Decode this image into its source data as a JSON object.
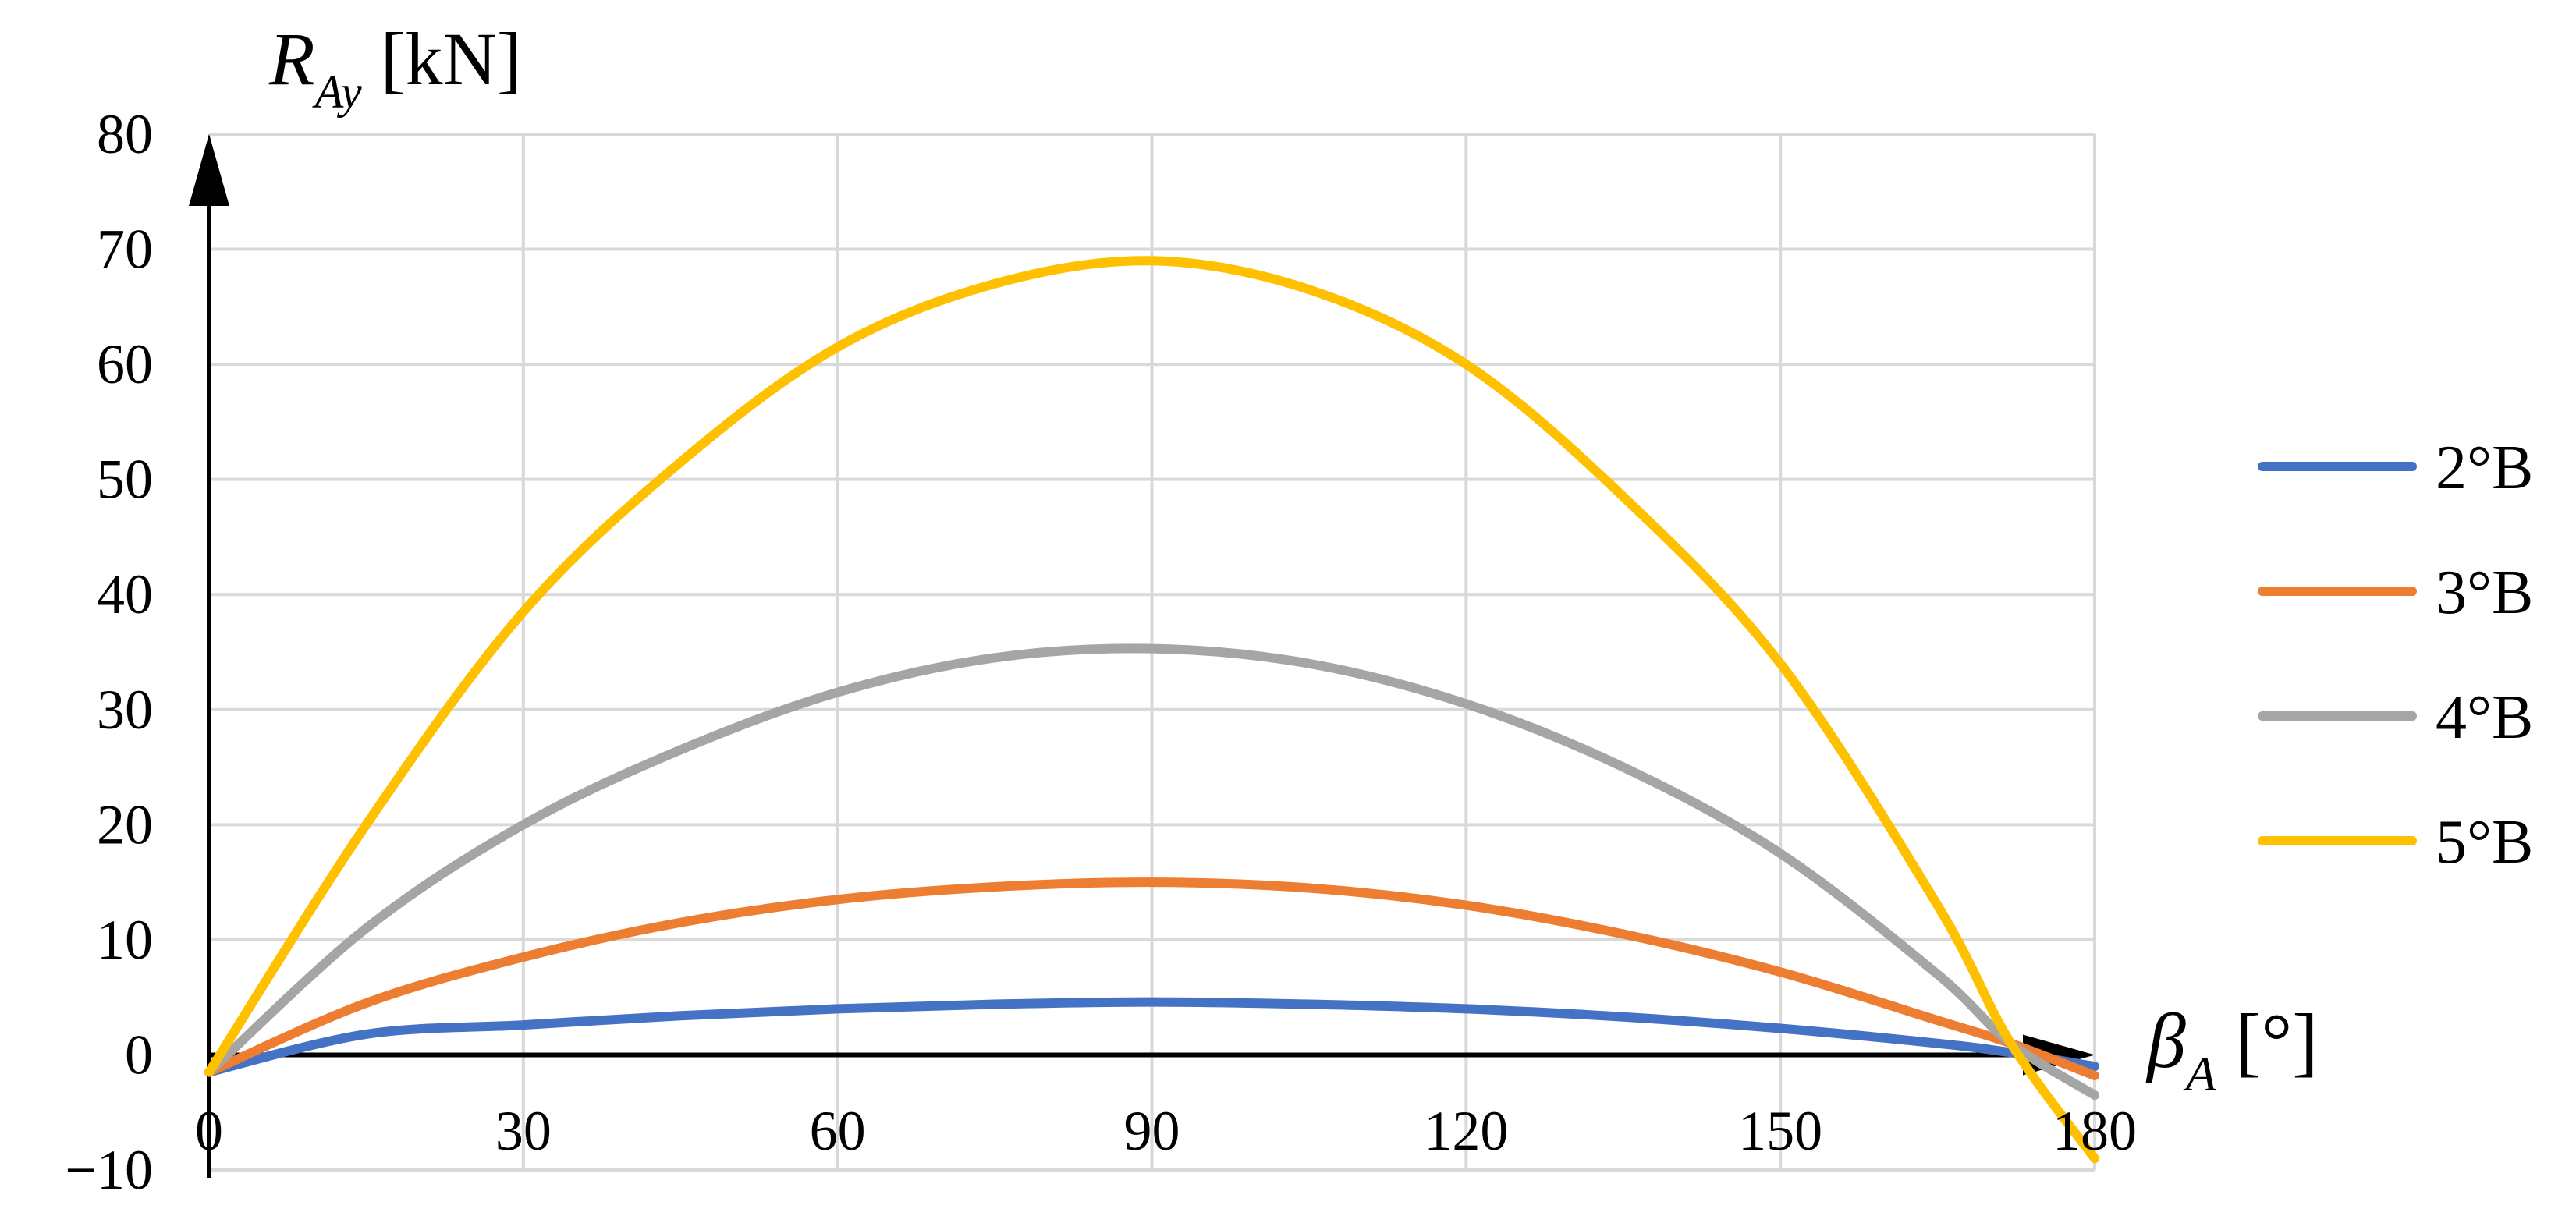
{
  "chart_data": {
    "type": "line",
    "title": "",
    "ylabel": {
      "symbol": "R",
      "subscript": "Ay",
      "unit": "[kN]"
    },
    "xlabel": {
      "symbol": "β",
      "subscript": "A",
      "unit": "[°]"
    },
    "xlim": [
      0,
      180
    ],
    "ylim": [
      -10,
      80
    ],
    "x_ticks": [
      "0",
      "30",
      "60",
      "90",
      "120",
      "150",
      "180"
    ],
    "y_ticks": [
      "−10",
      "0",
      "10",
      "20",
      "30",
      "40",
      "50",
      "60",
      "70",
      "80"
    ],
    "grid": true,
    "legend_position": "right",
    "x": [
      0,
      15,
      30,
      45,
      60,
      75,
      90,
      105,
      120,
      135,
      150,
      165,
      172,
      180
    ],
    "series": [
      {
        "name": "2°B",
        "color": "#4472C4",
        "values": [
          -1.5,
          1.8,
          2.6,
          3.4,
          4.0,
          4.4,
          4.6,
          4.4,
          4.0,
          3.3,
          2.3,
          1.0,
          0.2,
          -1.0
        ]
      },
      {
        "name": "3°B",
        "color": "#ED7D31",
        "values": [
          -1.5,
          4.5,
          8.5,
          11.5,
          13.5,
          14.6,
          15.0,
          14.5,
          13.0,
          10.5,
          7.2,
          3.0,
          1.0,
          -1.8
        ]
      },
      {
        "name": "4°B",
        "color": "#A5A5A5",
        "values": [
          -1.5,
          11.0,
          20.0,
          26.5,
          31.5,
          34.5,
          35.3,
          34.0,
          30.5,
          25.0,
          17.5,
          7.0,
          1.0,
          -3.5
        ]
      },
      {
        "name": "5°B",
        "color": "#FFC000",
        "values": [
          -1.5,
          20.0,
          38.5,
          51.5,
          61.5,
          67.0,
          69.0,
          66.5,
          60.0,
          48.5,
          34.0,
          13.0,
          1.0,
          -9.0
        ]
      }
    ]
  }
}
